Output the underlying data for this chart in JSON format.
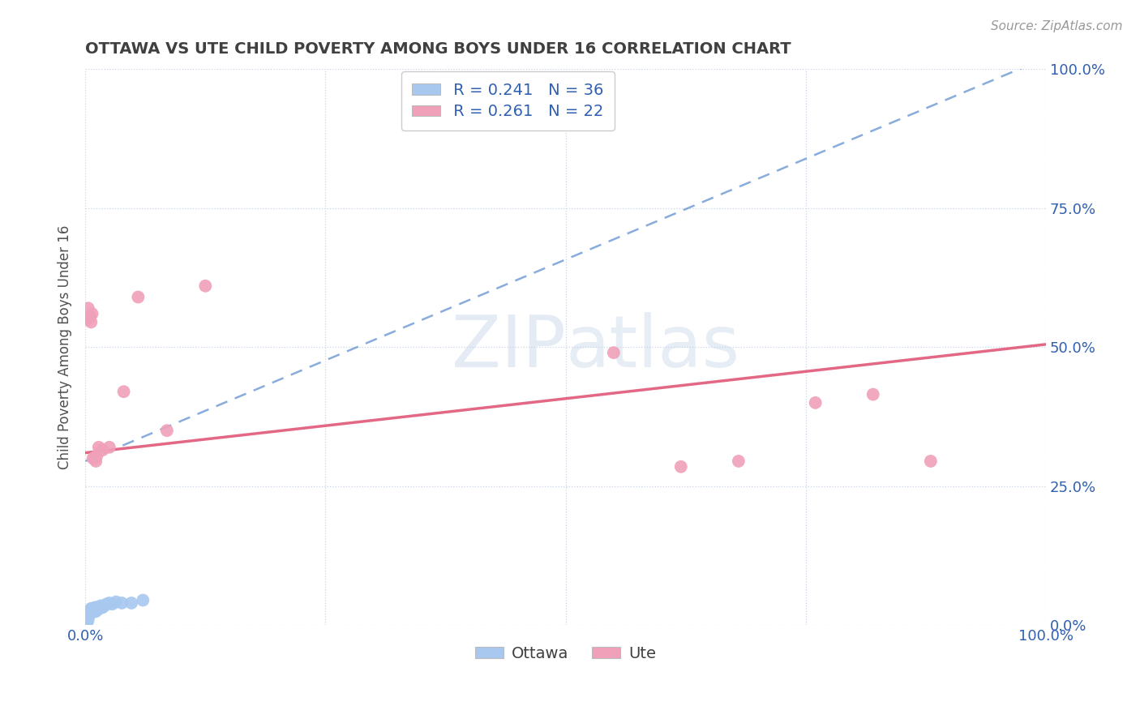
{
  "title": "OTTAWA VS UTE CHILD POVERTY AMONG BOYS UNDER 16 CORRELATION CHART",
  "source": "Source: ZipAtlas.com",
  "ylabel": "Child Poverty Among Boys Under 16",
  "xlim": [
    0,
    1.0
  ],
  "ylim": [
    0,
    1.0
  ],
  "legend_r_ottawa": "R = 0.241",
  "legend_n_ottawa": "N = 36",
  "legend_r_ute": "R = 0.261",
  "legend_n_ute": "N = 22",
  "ottawa_color": "#a8c8f0",
  "ute_color": "#f0a0b8",
  "ottawa_line_color": "#6090d0",
  "ute_line_color": "#e05878",
  "watermark_zip": "ZIP",
  "watermark_atlas": "atlas",
  "background_color": "#ffffff",
  "grid_color": "#c8d4e8",
  "title_color": "#404040",
  "axis_label_color": "#505050",
  "tick_color": "#3060b0",
  "ottawa_x": [
    0.002,
    0.003,
    0.004,
    0.004,
    0.005,
    0.005,
    0.006,
    0.006,
    0.007,
    0.007,
    0.008,
    0.008,
    0.009,
    0.009,
    0.01,
    0.01,
    0.01,
    0.011,
    0.011,
    0.012,
    0.012,
    0.013,
    0.013,
    0.014,
    0.015,
    0.016,
    0.017,
    0.018,
    0.02,
    0.022,
    0.025,
    0.028,
    0.032,
    0.038,
    0.048,
    0.06
  ],
  "ottawa_y": [
    0.005,
    0.01,
    0.02,
    0.025,
    0.02,
    0.025,
    0.025,
    0.03,
    0.025,
    0.03,
    0.025,
    0.03,
    0.03,
    0.028,
    0.03,
    0.025,
    0.032,
    0.03,
    0.025,
    0.028,
    0.032,
    0.028,
    0.03,
    0.032,
    0.032,
    0.035,
    0.032,
    0.032,
    0.035,
    0.038,
    0.04,
    0.038,
    0.042,
    0.04,
    0.04,
    0.045
  ],
  "ute_x": [
    0.002,
    0.003,
    0.005,
    0.006,
    0.007,
    0.008,
    0.01,
    0.011,
    0.012,
    0.014,
    0.018,
    0.025,
    0.04,
    0.055,
    0.085,
    0.125,
    0.55,
    0.62,
    0.68,
    0.76,
    0.82,
    0.88
  ],
  "ute_y": [
    0.55,
    0.57,
    0.555,
    0.545,
    0.56,
    0.3,
    0.3,
    0.295,
    0.305,
    0.32,
    0.315,
    0.32,
    0.42,
    0.59,
    0.35,
    0.61,
    0.49,
    0.285,
    0.295,
    0.4,
    0.415,
    0.295
  ],
  "ottawa_line_x": [
    0.0,
    1.0
  ],
  "ottawa_line_y": [
    0.295,
    1.02
  ],
  "ute_line_x": [
    0.0,
    1.0
  ],
  "ute_line_y": [
    0.31,
    0.505
  ]
}
